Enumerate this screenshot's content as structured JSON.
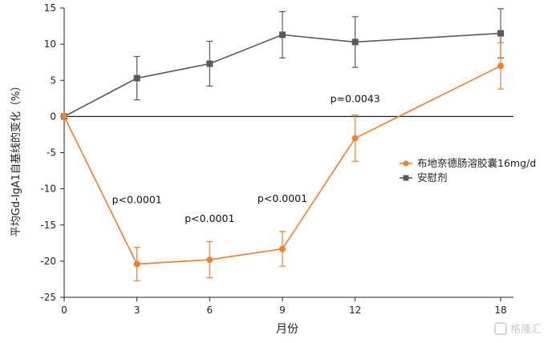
{
  "chart_data": {
    "type": "line",
    "xlabel": "月份",
    "ylabel": "平均Gd-IgA1自基线的变化（%）",
    "x": [
      0,
      3,
      6,
      9,
      12,
      18
    ],
    "xticks": [
      "0",
      "3",
      "6",
      "9",
      "12",
      "18"
    ],
    "xlim": [
      0,
      18
    ],
    "ylim": [
      -25,
      15
    ],
    "yticks": [
      15,
      10,
      5,
      0,
      -5,
      -10,
      -15,
      -20,
      -25
    ],
    "grid": false,
    "legend_position": "right",
    "series": [
      {
        "name": "布地奈德肠溶胶囊16mg/d",
        "color": "#F07F2A",
        "marker": "circle",
        "values": [
          0,
          -20.4,
          -19.8,
          -18.3,
          -3.0,
          7.0
        ],
        "err": [
          0,
          2.3,
          2.5,
          2.4,
          3.2,
          3.2
        ]
      },
      {
        "name": "安慰剂",
        "color": "#595959",
        "marker": "square",
        "values": [
          0,
          5.3,
          7.3,
          11.3,
          10.3,
          11.5
        ],
        "err": [
          0,
          3.0,
          3.1,
          3.2,
          3.5,
          3.4
        ]
      }
    ],
    "annotations": [
      {
        "text": "p<0.0001",
        "x": 3,
        "y": -12
      },
      {
        "text": "p<0.0001",
        "x": 6,
        "y": -14.6
      },
      {
        "text": "p<0.0001",
        "x": 9,
        "y": -11.8
      },
      {
        "text": "p=0.0043",
        "x": 12,
        "y": 2
      }
    ]
  },
  "watermark": {
    "text": "格隆汇"
  }
}
